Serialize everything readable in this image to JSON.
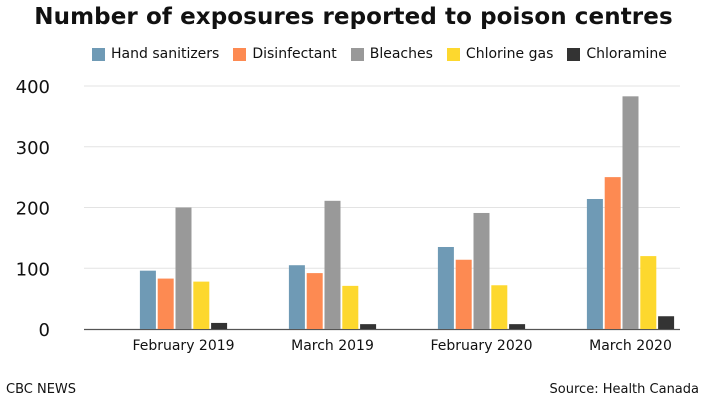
{
  "header": {
    "title": "Number of exposures reported to poison centres"
  },
  "footer": {
    "credit": "CBC NEWS",
    "source": "Source: Health Canada"
  },
  "chart_data": {
    "type": "bar",
    "title": "Number of exposures reported to poison centres",
    "xlabel": "",
    "ylabel": "",
    "ylim": [
      0,
      400
    ],
    "yticks": [
      0,
      100,
      200,
      300,
      400
    ],
    "grid": true,
    "legend_position": "top",
    "categories": [
      "February 2019",
      "March 2019",
      "February 2020",
      "March 2020"
    ],
    "series": [
      {
        "name": "Hand sanitizers",
        "color": "#6f9ab5",
        "values": [
          96,
          105,
          135,
          214
        ]
      },
      {
        "name": "Disinfectant",
        "color": "#fd8a52",
        "values": [
          83,
          92,
          114,
          250
        ]
      },
      {
        "name": "Bleaches",
        "color": "#999999",
        "values": [
          200,
          211,
          191,
          383
        ]
      },
      {
        "name": "Chlorine gas",
        "color": "#fdd82e",
        "values": [
          78,
          71,
          72,
          120
        ]
      },
      {
        "name": "Chloramine",
        "color": "#333333",
        "values": [
          10,
          8,
          8,
          21
        ]
      }
    ]
  }
}
